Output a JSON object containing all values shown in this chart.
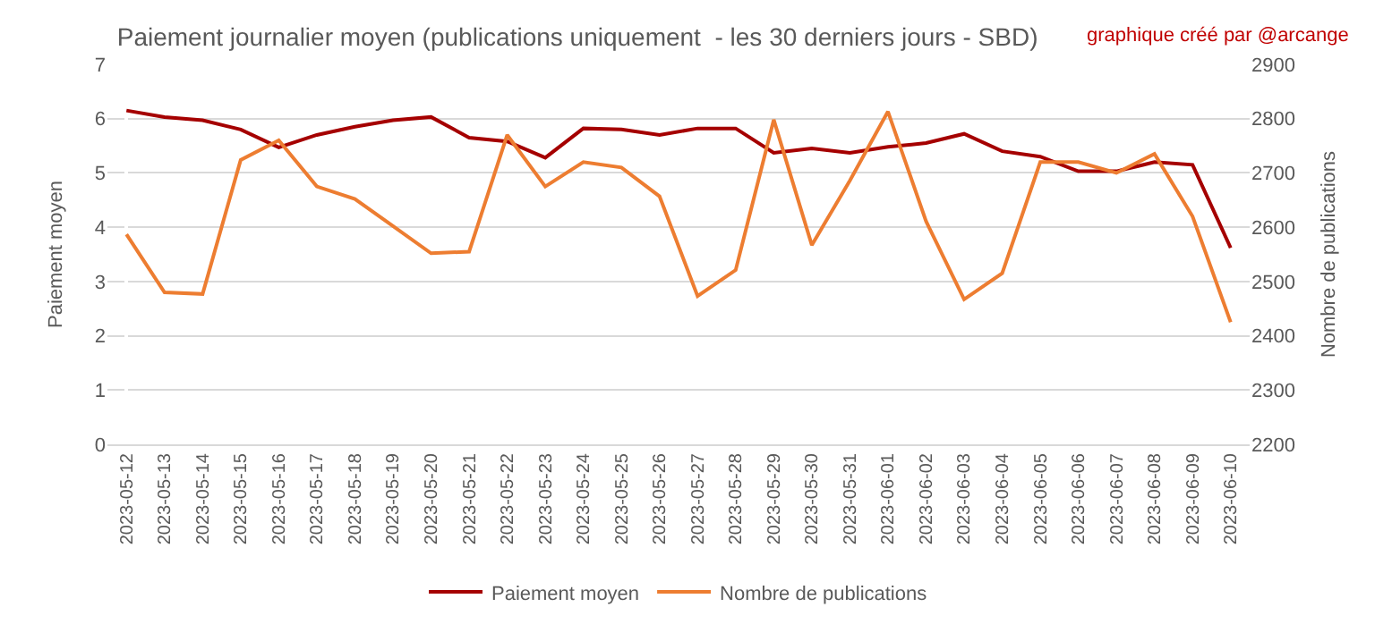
{
  "chart_data": {
    "type": "line",
    "title": "Paiement journalier moyen (publications uniquement  - les 30 derniers jours - SBD)",
    "annotations": [
      "graphique créé par @arcange"
    ],
    "ylabel": "Paiement moyen",
    "y2label": "Nombre de publications",
    "categories": [
      "2023-05-12",
      "2023-05-13",
      "2023-05-14",
      "2023-05-15",
      "2023-05-16",
      "2023-05-17",
      "2023-05-18",
      "2023-05-19",
      "2023-05-20",
      "2023-05-21",
      "2023-05-22",
      "2023-05-23",
      "2023-05-24",
      "2023-05-25",
      "2023-05-26",
      "2023-05-27",
      "2023-05-28",
      "2023-05-29",
      "2023-05-30",
      "2023-05-31",
      "2023-06-01",
      "2023-06-02",
      "2023-06-03",
      "2023-06-04",
      "2023-06-05",
      "2023-06-06",
      "2023-06-07",
      "2023-06-08",
      "2023-06-09",
      "2023-06-10"
    ],
    "series": [
      {
        "name": "Paiement moyen",
        "color": "#a50000",
        "values": [
          6.15,
          6.03,
          5.97,
          5.8,
          5.47,
          5.7,
          5.85,
          5.97,
          6.03,
          5.65,
          5.58,
          5.28,
          5.82,
          5.8,
          5.7,
          5.82,
          5.82,
          5.37,
          5.45,
          5.37,
          5.48,
          5.55,
          5.72,
          5.4,
          5.3,
          5.03,
          5.03,
          5.2,
          5.15,
          3.62
        ]
      },
      {
        "name": "Nombre de publications",
        "color": "#ed7d31",
        "axis": "y2",
        "values": [
          2587,
          2480,
          2477,
          2724,
          2760,
          2675,
          2652,
          2602,
          2552,
          2555,
          2770,
          2675,
          2720,
          2710,
          2657,
          2473,
          2521,
          2798,
          2567,
          2686,
          2813,
          2611,
          2467,
          2515,
          2720,
          2720,
          2700,
          2735,
          2620,
          2425
        ]
      }
    ],
    "ylim": [
      0,
      7
    ],
    "yticks": [
      0,
      1,
      2,
      3,
      4,
      5,
      6,
      7
    ],
    "y2lim": [
      2200,
      2900
    ],
    "y2ticks": [
      2200,
      2300,
      2400,
      2500,
      2600,
      2700,
      2800,
      2900
    ],
    "grid": "y",
    "legend": "bottom",
    "marker": "none",
    "line_style": "solid"
  }
}
